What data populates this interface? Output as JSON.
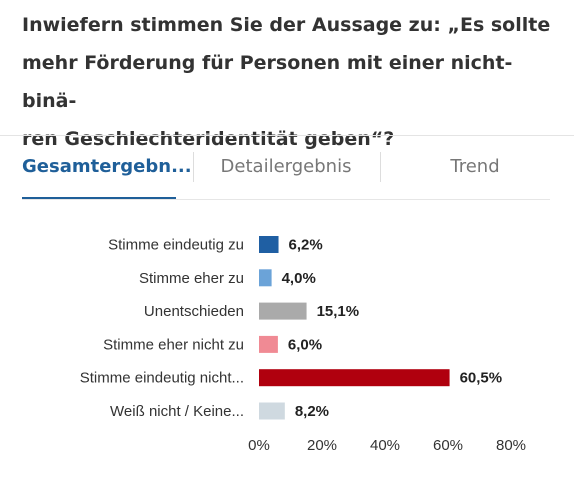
{
  "question": {
    "lines": [
      "Inwiefern stimmen Sie der Aussage zu: „Es sollte",
      "mehr Förderung für Personen mit einer nicht-binä-",
      "ren Geschlechteridentität geben“?"
    ]
  },
  "tabs": [
    {
      "label": "Gesamtergebn...",
      "active": true
    },
    {
      "label": "Detailergebnis",
      "active": false
    },
    {
      "label": "Trend",
      "active": false
    }
  ],
  "chart_data": {
    "type": "bar",
    "orientation": "horizontal",
    "categories": [
      "Stimme eindeutig zu",
      "Stimme eher zu",
      "Unentschieden",
      "Stimme eher nicht zu",
      "Stimme eindeutig nicht...",
      "Weiß nicht / Keine..."
    ],
    "values": [
      6.2,
      4.0,
      15.1,
      6.0,
      60.5,
      8.2
    ],
    "value_labels": [
      "6,2%",
      "4,0%",
      "15,1%",
      "6,0%",
      "60,5%",
      "8,2%"
    ],
    "colors": [
      "#1f5fa3",
      "#6ba3d8",
      "#aaaaaa",
      "#f08a94",
      "#b0000e",
      "#cfd9e0"
    ],
    "xlim": [
      0,
      80
    ],
    "ticks": [
      0,
      20,
      40,
      60,
      80
    ],
    "tick_labels": [
      "0%",
      "20%",
      "40%",
      "60%",
      "80%"
    ],
    "grid": false,
    "legend": "none"
  }
}
